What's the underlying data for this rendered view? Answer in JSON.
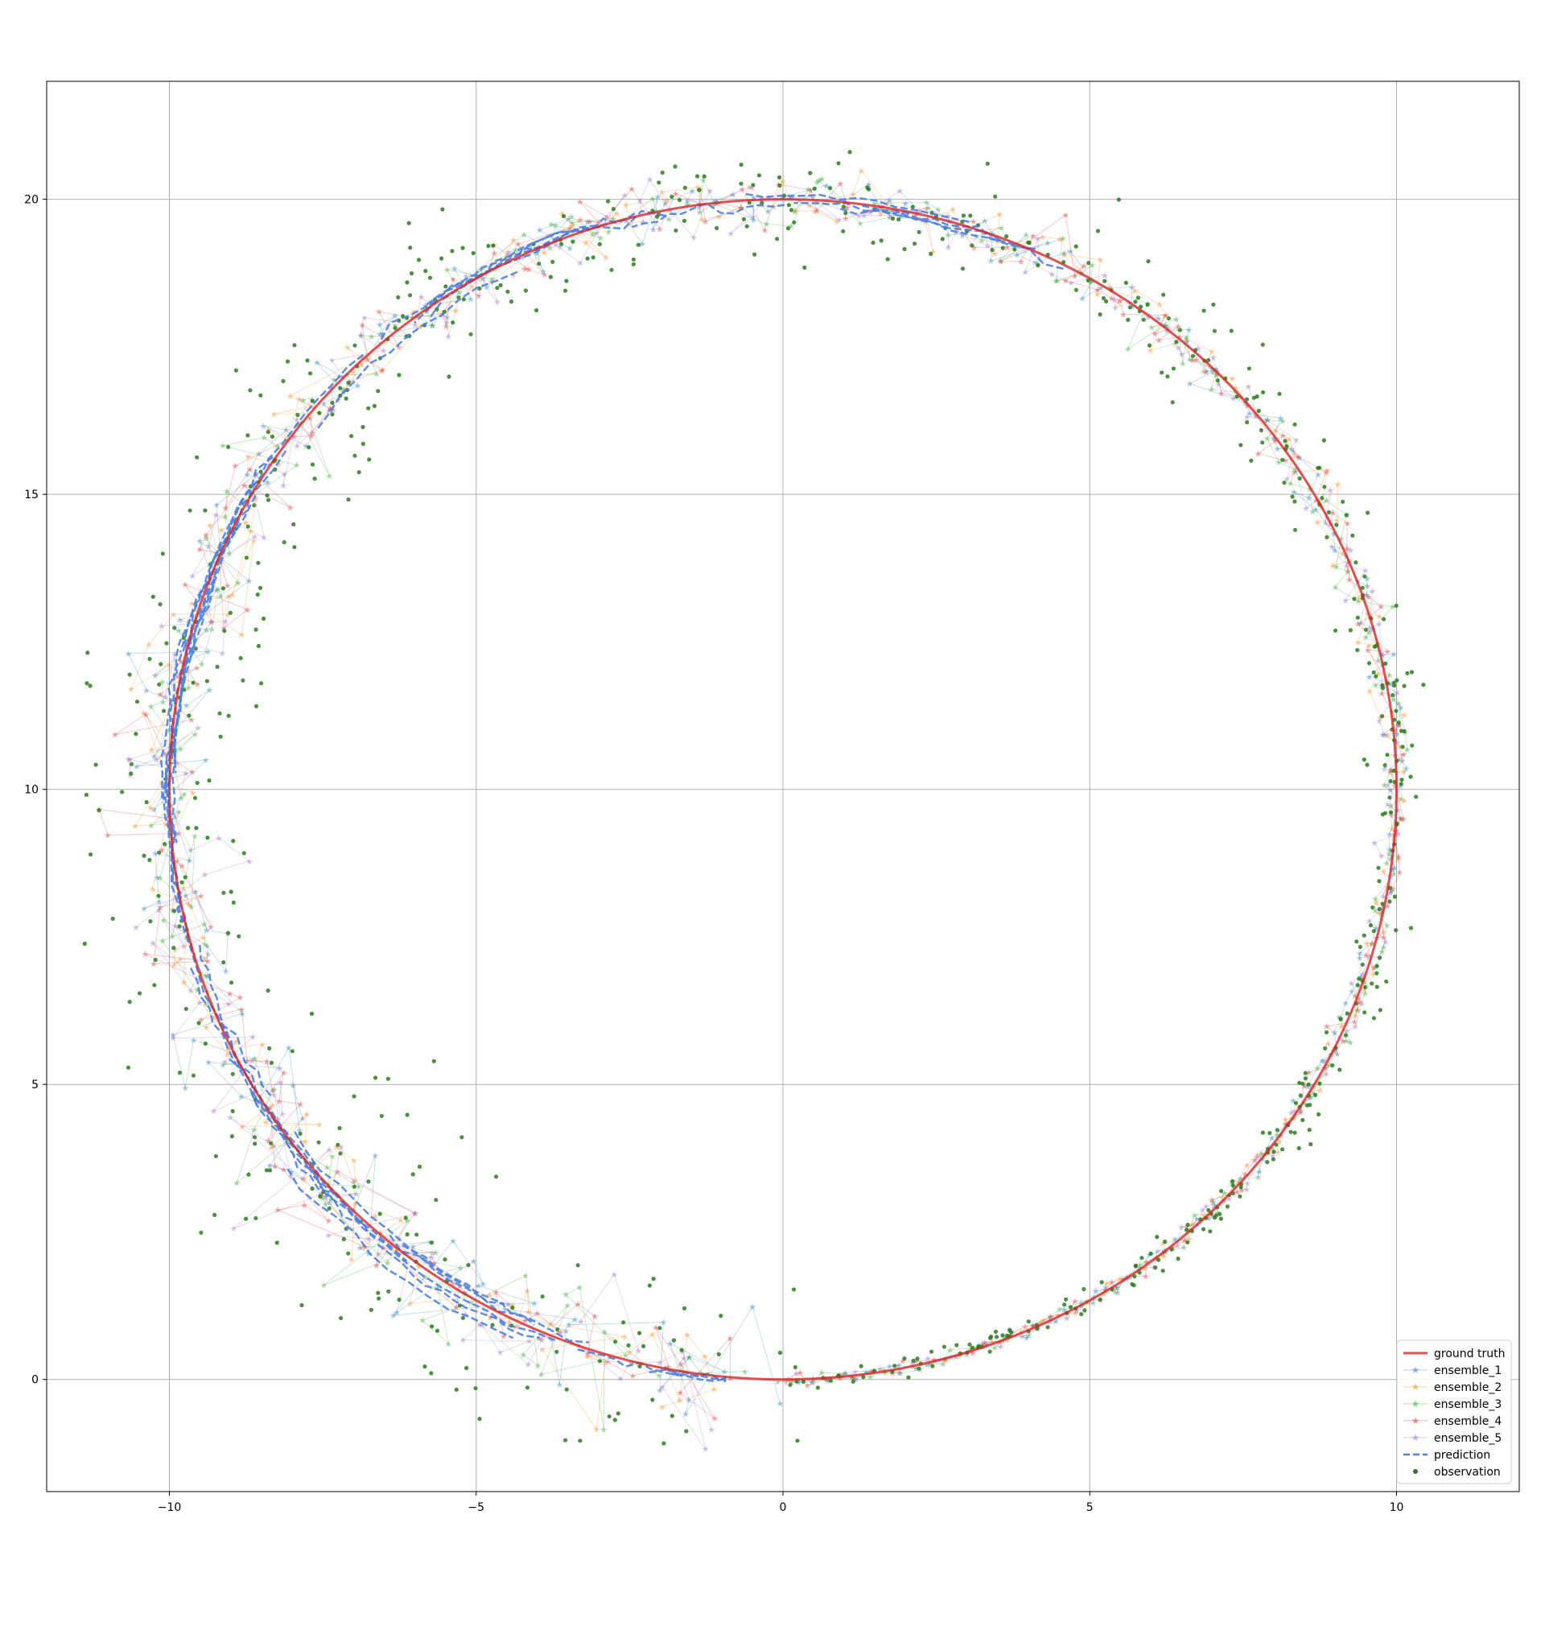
{
  "chart_data": {
    "type": "scatter",
    "title": "",
    "xlabel": "",
    "ylabel": "",
    "xlim": [
      -12,
      12
    ],
    "ylim": [
      -1.9,
      22
    ],
    "xticks": [
      -10,
      -5,
      0,
      5,
      10
    ],
    "yticks": [
      0,
      5,
      10,
      15,
      20
    ],
    "grid": true,
    "legend_position": "lower-right",
    "circle": {
      "center": [
        0,
        10
      ],
      "radius": 10
    },
    "colors": {
      "ground_truth": "#d62728",
      "ensemble_1": "#1f77b4",
      "ensemble_2": "#ff7f0e",
      "ensemble_3": "#2ca02c",
      "ensemble_4": "#d62728",
      "ensemble_5": "#9467bd",
      "prediction": "#4f7fe0",
      "observation": "#2c7c1c"
    },
    "legend": [
      {
        "key": "ground_truth",
        "label": "ground truth",
        "style": "line"
      },
      {
        "key": "ensemble_1",
        "label": "ensemble_1",
        "style": "star-line"
      },
      {
        "key": "ensemble_2",
        "label": "ensemble_2",
        "style": "star-line"
      },
      {
        "key": "ensemble_3",
        "label": "ensemble_3",
        "style": "star-line"
      },
      {
        "key": "ensemble_4",
        "label": "ensemble_4",
        "style": "star-line"
      },
      {
        "key": "ensemble_5",
        "label": "ensemble_5",
        "style": "star-line"
      },
      {
        "key": "prediction",
        "label": "prediction",
        "style": "dashed"
      },
      {
        "key": "observation",
        "label": "observation",
        "style": "dot"
      }
    ],
    "series": [
      {
        "name": "ground truth",
        "description_points": "circle centered (0,10) radius 10",
        "x": [
          0,
          1.74,
          3.42,
          5.0,
          6.43,
          7.66,
          8.66,
          9.4,
          9.85,
          10.0,
          9.85,
          9.4,
          8.66,
          7.66,
          6.43,
          5.0,
          3.42,
          1.74,
          0,
          -1.74,
          -3.42,
          -5.0,
          -6.43,
          -7.66,
          -8.66,
          -9.4,
          -9.85,
          -10.0,
          -9.85,
          -9.4,
          -8.66,
          -7.66,
          -6.43,
          -5.0,
          -3.42,
          -1.74,
          0
        ],
        "y": [
          0,
          0.15,
          0.6,
          1.34,
          2.34,
          3.57,
          5.0,
          6.58,
          8.26,
          10.0,
          11.74,
          13.42,
          15.0,
          16.43,
          17.66,
          18.66,
          19.4,
          19.85,
          20.0,
          19.85,
          19.4,
          18.66,
          17.66,
          16.43,
          15.0,
          13.42,
          11.74,
          10.0,
          8.26,
          6.58,
          5.0,
          3.57,
          2.34,
          1.34,
          0.6,
          0.15,
          0
        ]
      }
    ]
  }
}
